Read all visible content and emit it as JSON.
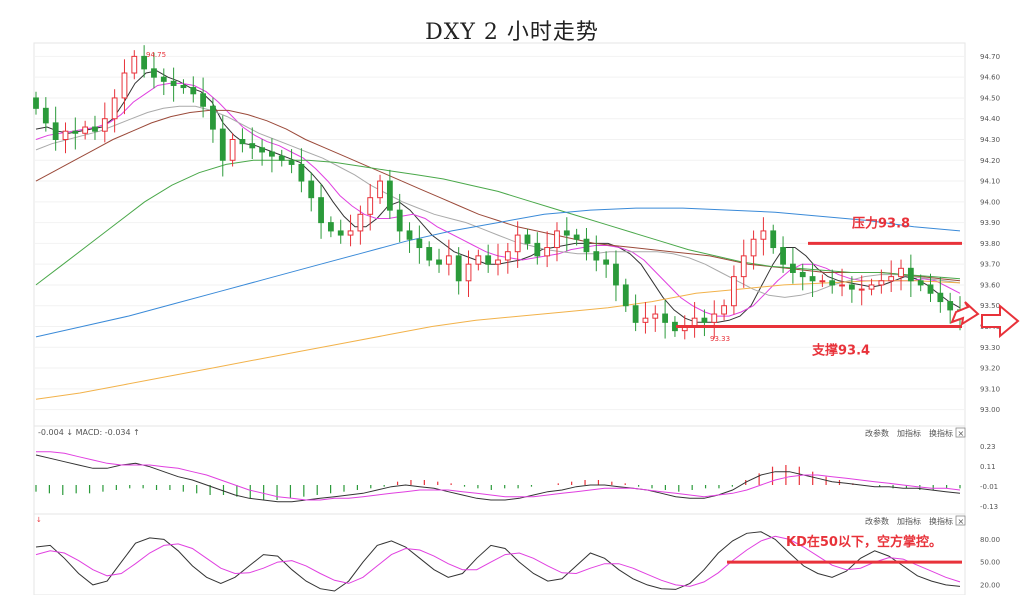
{
  "title": "DXY 2 小时走势",
  "colors": {
    "up": "#e8323a",
    "down": "#2b9a3a",
    "ma_black": "#333333",
    "ma_magenta": "#e040e0",
    "ma_gray": "#aaaaaa",
    "ma_brown": "#9b4a3a",
    "ma_green": "#4aa84a",
    "ma_blue": "#3a8ad8",
    "ma_orange": "#f2b24a",
    "annotation": "#e8323a"
  },
  "chart_data": [
    {
      "type": "candlestick",
      "panel": "price",
      "y_ticks": [
        "94.70",
        "94.60",
        "94.50",
        "94.40",
        "94.30",
        "94.20",
        "94.10",
        "94.00",
        "93.90",
        "93.80",
        "93.70",
        "93.60",
        "93.50",
        "93.40",
        "93.30",
        "93.20",
        "93.10",
        "93.00"
      ],
      "ylim": [
        92.95,
        94.75
      ],
      "high_label": "94.75",
      "low_label": "93.33",
      "closes": [
        94.45,
        94.38,
        94.3,
        94.34,
        94.33,
        94.36,
        94.34,
        94.4,
        94.5,
        94.62,
        94.7,
        94.64,
        94.6,
        94.58,
        94.56,
        94.55,
        94.52,
        94.46,
        94.35,
        94.2,
        94.3,
        94.28,
        94.26,
        94.24,
        94.22,
        94.2,
        94.18,
        94.1,
        94.02,
        93.9,
        93.86,
        93.84,
        93.86,
        93.94,
        94.02,
        94.1,
        93.96,
        93.86,
        93.82,
        93.78,
        93.72,
        93.7,
        93.74,
        93.62,
        93.7,
        93.74,
        93.7,
        93.72,
        93.76,
        93.84,
        93.8,
        93.74,
        93.78,
        93.86,
        93.84,
        93.82,
        93.76,
        93.72,
        93.7,
        93.6,
        93.5,
        93.42,
        93.44,
        93.46,
        93.42,
        93.38,
        93.4,
        93.44,
        93.42,
        93.46,
        93.5,
        93.64,
        93.74,
        93.82,
        93.86,
        93.78,
        93.7,
        93.66,
        93.64,
        93.62,
        93.62,
        93.6,
        93.6,
        93.58,
        93.58,
        93.6,
        93.62,
        93.64,
        93.68,
        93.62,
        93.6,
        93.56,
        93.52,
        93.48,
        93.46
      ],
      "series": [
        {
          "name": "MA",
          "values": [
            94.35,
            94.36,
            94.34,
            94.33,
            94.34,
            94.35,
            94.36,
            94.4,
            94.48,
            94.57,
            94.62,
            94.63,
            94.6,
            94.58,
            94.55,
            94.53,
            94.48,
            94.38,
            94.32,
            94.28,
            94.27,
            94.25,
            94.23,
            94.21,
            94.19,
            94.14,
            94.08,
            94.0,
            93.93,
            93.88,
            93.88,
            93.92,
            93.98,
            94.0,
            93.96,
            93.9,
            93.84,
            93.8,
            93.76,
            93.74,
            93.72,
            93.7,
            93.7,
            93.71,
            93.72,
            93.74,
            93.77,
            93.78,
            93.79,
            93.8,
            93.8,
            93.8,
            93.8,
            93.78,
            93.75,
            93.7,
            93.62,
            93.54,
            93.48,
            93.44,
            93.42,
            93.42,
            93.42,
            93.43,
            93.45,
            93.5,
            93.6,
            93.7,
            93.78,
            93.78,
            93.74,
            93.68,
            93.64,
            93.62,
            93.61,
            93.6,
            93.59,
            93.6,
            93.62,
            93.64,
            93.63,
            93.6,
            93.56,
            93.52,
            93.49
          ]
        },
        {
          "name": "MA",
          "values": [
            94.3,
            94.32,
            94.33,
            94.34,
            94.35,
            94.36,
            94.38,
            94.42,
            94.48,
            94.52,
            94.56,
            94.57,
            94.57,
            94.56,
            94.53,
            94.48,
            94.42,
            94.36,
            94.32,
            94.29,
            94.27,
            94.24,
            94.21,
            94.16,
            94.1,
            94.03,
            93.98,
            93.94,
            93.92,
            93.92,
            93.93,
            93.94,
            93.92,
            93.88,
            93.85,
            93.82,
            93.79,
            93.76,
            93.74,
            93.73,
            93.72,
            93.73,
            93.74,
            93.75,
            93.77,
            93.78,
            93.79,
            93.79,
            93.78,
            93.76,
            93.72,
            93.66,
            93.6,
            93.54,
            93.5,
            93.47,
            93.45,
            93.45,
            93.47,
            93.5,
            93.56,
            93.62,
            93.67,
            93.7,
            93.7,
            93.68,
            93.65,
            93.63,
            93.62,
            93.62,
            93.62,
            93.62,
            93.62,
            93.63,
            93.62,
            93.59,
            93.56
          ]
        },
        {
          "name": "MA",
          "values": [
            94.25,
            94.28,
            94.3,
            94.32,
            94.34,
            94.37,
            94.4,
            94.43,
            94.45,
            94.46,
            94.46,
            94.44,
            94.41,
            94.37,
            94.33,
            94.3,
            94.27,
            94.24,
            94.21,
            94.17,
            94.13,
            94.08,
            94.04,
            94.0,
            93.97,
            93.94,
            93.92,
            93.9,
            93.87,
            93.84,
            93.81,
            93.79,
            93.77,
            93.76,
            93.75,
            93.75,
            93.76,
            93.76,
            93.76,
            93.76,
            93.75,
            93.73,
            93.7,
            93.66,
            93.62,
            93.58,
            93.55,
            93.54,
            93.55,
            93.57,
            93.6,
            93.62,
            93.64,
            93.65,
            93.65,
            93.64,
            93.63,
            93.62,
            93.61
          ]
        },
        {
          "name": "MA",
          "values": [
            94.1,
            94.15,
            94.2,
            94.25,
            94.3,
            94.34,
            94.38,
            94.41,
            94.43,
            94.44,
            94.44,
            94.42,
            94.39,
            94.35,
            94.3,
            94.26,
            94.22,
            94.18,
            94.14,
            94.1,
            94.06,
            94.02,
            93.98,
            93.94,
            93.91,
            93.88,
            93.86,
            93.84,
            93.82,
            93.8,
            93.79,
            93.78,
            93.77,
            93.76,
            93.75,
            93.74,
            93.72,
            93.7,
            93.69,
            93.68,
            93.67,
            93.66,
            93.66,
            93.66,
            93.66,
            93.65,
            93.64,
            93.63,
            93.62
          ]
        },
        {
          "name": "MA",
          "values": [
            93.6,
            93.7,
            93.8,
            93.9,
            94.0,
            94.08,
            94.14,
            94.18,
            94.2,
            94.2,
            94.2,
            94.19,
            94.17,
            94.15,
            94.13,
            94.11,
            94.08,
            94.05,
            94.01,
            93.97,
            93.93,
            93.89,
            93.85,
            93.81,
            93.77,
            93.74,
            93.71,
            93.69,
            93.68,
            93.67,
            93.66,
            93.66,
            93.65,
            93.64,
            93.63
          ]
        },
        {
          "name": "MA",
          "values": [
            93.35,
            93.4,
            93.45,
            93.51,
            93.57,
            93.63,
            93.69,
            93.75,
            93.81,
            93.86,
            93.9,
            93.94,
            93.96,
            93.97,
            93.97,
            93.96,
            93.95,
            93.93,
            93.91,
            93.88,
            93.86
          ]
        },
        {
          "name": "MA",
          "values": [
            93.05,
            93.08,
            93.12,
            93.16,
            93.2,
            93.24,
            93.28,
            93.32,
            93.36,
            93.4,
            93.43,
            93.45,
            93.47,
            93.49,
            93.52,
            93.56,
            93.58,
            93.6,
            93.61,
            93.62,
            93.62,
            93.61
          ]
        }
      ],
      "resistance_label": "压力93.8",
      "resistance_value": 93.8,
      "support_label": "支撑93.4",
      "support_value": 93.4
    },
    {
      "type": "bar",
      "panel": "macd",
      "legend": "-0.004 ↓ MACD: -0.034 ↑",
      "y_ticks": [
        "0.23",
        "0.11",
        "-0.01",
        "-0.13"
      ],
      "ylim": [
        -0.15,
        0.27
      ],
      "macd_hist": [
        -0.04,
        -0.05,
        -0.06,
        -0.05,
        -0.05,
        -0.04,
        -0.03,
        -0.02,
        -0.02,
        -0.03,
        -0.03,
        -0.04,
        -0.05,
        -0.06,
        -0.06,
        -0.07,
        -0.08,
        -0.09,
        -0.09,
        -0.08,
        -0.07,
        -0.06,
        -0.05,
        -0.04,
        -0.03,
        -0.02,
        -0.01,
        0.02,
        0.03,
        0.03,
        0.02,
        0.01,
        -0.01,
        -0.02,
        -0.03,
        -0.02,
        -0.02,
        -0.01,
        0.0,
        0.01,
        0.02,
        0.03,
        0.03,
        0.02,
        0.01,
        -0.01,
        -0.02,
        -0.03,
        -0.04,
        -0.03,
        -0.02,
        -0.02,
        -0.01,
        0.03,
        0.07,
        0.11,
        0.12,
        0.11,
        0.08,
        0.05,
        0.03,
        0.01,
        0.0,
        -0.01,
        -0.02,
        -0.02,
        -0.03,
        -0.03,
        -0.02,
        -0.02
      ],
      "series": [
        {
          "name": "DIF",
          "values": [
            0.18,
            0.16,
            0.14,
            0.12,
            0.1,
            0.1,
            0.12,
            0.13,
            0.11,
            0.08,
            0.05,
            0.03,
            0.0,
            -0.03,
            -0.06,
            -0.08,
            -0.09,
            -0.1,
            -0.1,
            -0.09,
            -0.08,
            -0.07,
            -0.06,
            -0.05,
            -0.03,
            -0.01,
            0.0,
            -0.01,
            -0.02,
            -0.04,
            -0.06,
            -0.08,
            -0.09,
            -0.09,
            -0.08,
            -0.06,
            -0.04,
            -0.03,
            -0.01,
            0.0,
            0.0,
            -0.01,
            -0.02,
            -0.03,
            -0.05,
            -0.07,
            -0.08,
            -0.08,
            -0.06,
            -0.03,
            0.02,
            0.06,
            0.08,
            0.08,
            0.06,
            0.04,
            0.02,
            0.01,
            0.0,
            -0.01,
            -0.01,
            -0.02,
            -0.02,
            -0.03,
            -0.04,
            -0.05
          ]
        },
        {
          "name": "DEA",
          "values": [
            0.2,
            0.2,
            0.19,
            0.17,
            0.15,
            0.13,
            0.12,
            0.12,
            0.12,
            0.11,
            0.1,
            0.08,
            0.06,
            0.03,
            0.0,
            -0.03,
            -0.05,
            -0.07,
            -0.08,
            -0.09,
            -0.09,
            -0.08,
            -0.08,
            -0.07,
            -0.06,
            -0.05,
            -0.04,
            -0.03,
            -0.03,
            -0.03,
            -0.04,
            -0.05,
            -0.06,
            -0.07,
            -0.07,
            -0.07,
            -0.06,
            -0.05,
            -0.04,
            -0.03,
            -0.02,
            -0.02,
            -0.02,
            -0.03,
            -0.04,
            -0.05,
            -0.06,
            -0.07,
            -0.06,
            -0.05,
            -0.03,
            0.0,
            0.03,
            0.05,
            0.06,
            0.06,
            0.05,
            0.04,
            0.03,
            0.02,
            0.01,
            0.0,
            -0.01,
            -0.02,
            -0.02,
            -0.03
          ]
        }
      ]
    },
    {
      "type": "line",
      "panel": "kd",
      "y_ticks": [
        "80.00",
        "50.00",
        "20.00"
      ],
      "ylim": [
        8,
        95
      ],
      "level_value": 50,
      "annotation": "KD在50以下，空方掌控。",
      "series": [
        {
          "name": "K",
          "values": [
            70,
            72,
            55,
            35,
            20,
            25,
            50,
            75,
            82,
            80,
            65,
            45,
            30,
            22,
            30,
            45,
            60,
            58,
            40,
            25,
            15,
            12,
            25,
            50,
            72,
            78,
            70,
            55,
            40,
            30,
            35,
            55,
            72,
            68,
            50,
            35,
            25,
            28,
            45,
            62,
            55,
            40,
            28,
            20,
            15,
            14,
            22,
            40,
            62,
            78,
            88,
            90,
            80,
            62,
            45,
            35,
            30,
            38,
            55,
            65,
            58,
            45,
            32,
            25,
            20,
            18
          ]
        },
        {
          "name": "D",
          "values": [
            60,
            65,
            62,
            52,
            40,
            32,
            35,
            48,
            62,
            72,
            74,
            68,
            55,
            42,
            35,
            36,
            42,
            50,
            52,
            45,
            35,
            26,
            22,
            30,
            45,
            60,
            68,
            66,
            58,
            48,
            40,
            40,
            50,
            60,
            62,
            55,
            45,
            36,
            35,
            42,
            48,
            48,
            42,
            34,
            26,
            20,
            18,
            24,
            36,
            52,
            66,
            78,
            84,
            80,
            70,
            58,
            46,
            40,
            42,
            50,
            56,
            54,
            46,
            38,
            30,
            24
          ]
        }
      ]
    }
  ],
  "macd_controls": [
    "改参数",
    "加指标",
    "换指标"
  ],
  "kd_controls": [
    "改参数",
    "加指标",
    "换指标"
  ],
  "close_glyph": "×"
}
